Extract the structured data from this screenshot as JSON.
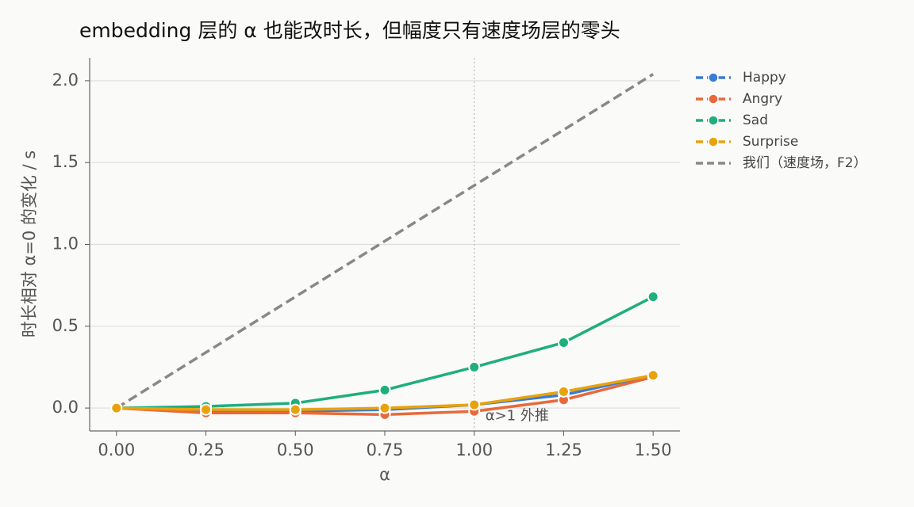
{
  "chart_data": {
    "type": "line",
    "title": "embedding 层的 α 也能改时长，但幅度只有速度场层的零头",
    "x_label": "α",
    "y_label": "时长相对 α=0 的变化 / s",
    "x": [
      0,
      0.25,
      0.5,
      0.75,
      1.0,
      1.25,
      1.5
    ],
    "series": [
      {
        "name": "我们（速度场，F2）",
        "color": "#888888",
        "linestyle": "dashed",
        "values": [
          0,
          0.34,
          0.68,
          1.02,
          1.36,
          1.7,
          2.04
        ]
      },
      {
        "name": "Happy",
        "color": "#3a7bd5",
        "linestyle": "solid",
        "values": [
          0,
          -0.02,
          -0.02,
          -0.01,
          0.02,
          0.08,
          0.2
        ]
      },
      {
        "name": "Angry",
        "color": "#e8693b",
        "linestyle": "solid",
        "values": [
          0,
          -0.03,
          -0.03,
          -0.04,
          -0.02,
          0.05,
          0.19
        ]
      },
      {
        "name": "Sad",
        "color": "#1fae7d",
        "linestyle": "solid",
        "values": [
          0,
          0.01,
          0.03,
          0.11,
          0.25,
          0.4,
          0.68
        ]
      },
      {
        "name": "Surprise",
        "color": "#e8a20c",
        "linestyle": "solid",
        "values": [
          0,
          -0.01,
          -0.01,
          0.0,
          0.02,
          0.1,
          0.2
        ]
      }
    ],
    "legend_order": [
      1,
      2,
      3,
      4,
      0
    ],
    "xlim": [
      -0.075,
      1.575
    ],
    "ylim": [
      -0.14,
      2.14
    ],
    "xticks": [
      {
        "value": 0,
        "label": "0.00"
      },
      {
        "value": 0.25,
        "label": "0.25"
      },
      {
        "value": 0.5,
        "label": "0.50"
      },
      {
        "value": 0.75,
        "label": "0.75"
      },
      {
        "value": 1.0,
        "label": "1.00"
      },
      {
        "value": 1.25,
        "label": "1.25"
      },
      {
        "value": 1.5,
        "label": "1.50"
      }
    ],
    "yticks": [
      {
        "value": 0,
        "label": "0.0"
      },
      0.5,
      {
        "value": 1.0,
        "label": "1.0"
      },
      1.5,
      {
        "value": 2.0,
        "label": "2.0"
      }
    ],
    "grid": true,
    "legend": "outside-right",
    "vline": 1.0,
    "annotation": {
      "text": "α>1 外推",
      "x": 1.0,
      "y": -0.04
    }
  }
}
